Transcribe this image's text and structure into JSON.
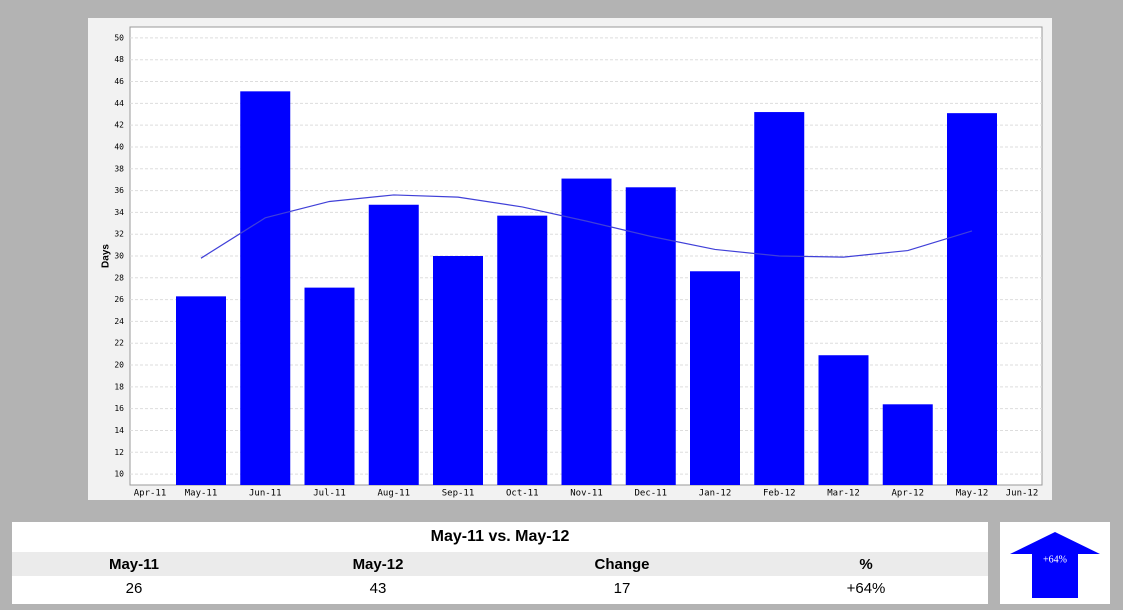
{
  "chart_data": {
    "type": "bar",
    "y_label": "Days",
    "categories": [
      "Apr-11",
      "May-11",
      "Jun-11",
      "Jul-11",
      "Aug-11",
      "Sep-11",
      "Oct-11",
      "Nov-11",
      "Dec-11",
      "Jan-12",
      "Feb-12",
      "Mar-12",
      "Apr-12",
      "May-12",
      "Jun-12"
    ],
    "values": [
      null,
      26.3,
      45.1,
      27.1,
      34.7,
      30.0,
      33.7,
      37.1,
      36.3,
      28.6,
      43.2,
      20.9,
      16.4,
      43.1,
      null
    ],
    "color": "#0000ff",
    "trend": {
      "color": "#4040d8",
      "values": [
        null,
        29.8,
        33.5,
        35.0,
        35.6,
        35.4,
        34.5,
        33.2,
        31.8,
        30.6,
        30.0,
        29.9,
        30.5,
        32.3,
        null
      ]
    },
    "ylim": [
      9,
      51
    ],
    "yticks": [
      10,
      12,
      14,
      16,
      18,
      20,
      22,
      24,
      26,
      28,
      30,
      32,
      34,
      36,
      38,
      40,
      42,
      44,
      46,
      48,
      50
    ],
    "grid": true
  },
  "comparison": {
    "title": "May-11 vs. May-12",
    "headers": [
      "May-11",
      "May-12",
      "Change",
      "%"
    ],
    "values": [
      "26",
      "43",
      "17",
      "+64%"
    ],
    "badge": "+64%"
  }
}
